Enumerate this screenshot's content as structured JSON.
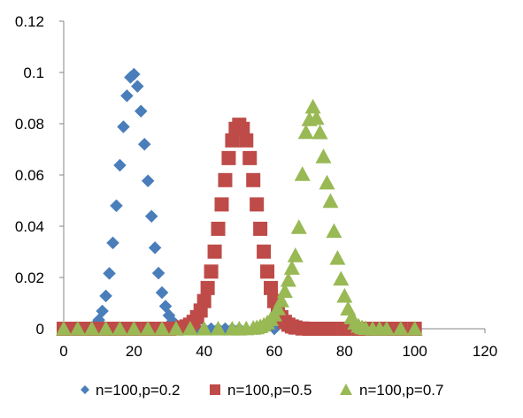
{
  "chart_data": {
    "type": "scatter",
    "title": "",
    "xlabel": "",
    "ylabel": "",
    "xlim": [
      0,
      120
    ],
    "ylim": [
      0,
      0.12
    ],
    "x_ticks": [
      0,
      20,
      40,
      60,
      80,
      100,
      120
    ],
    "y_ticks": [
      0,
      0.02,
      0.04,
      0.06,
      0.08,
      0.1,
      0.12
    ],
    "x_tick_labels": [
      "0",
      "20",
      "40",
      "60",
      "80",
      "100",
      "120"
    ],
    "y_tick_labels": [
      "0",
      "0.02",
      "0.04",
      "0.06",
      "0.08",
      "0.1",
      "0.12"
    ],
    "grid": false,
    "legend_position": "bottom",
    "series": [
      {
        "name": "n=100,p=0.2",
        "marker": "diamond",
        "color": "#4a7ebb",
        "x": [
          0,
          2,
          4,
          6,
          8,
          9,
          10,
          11,
          12,
          13,
          14,
          15,
          16,
          17,
          18,
          19,
          20,
          21,
          22,
          23,
          24,
          25,
          26,
          27,
          28,
          29,
          30,
          31,
          32,
          33,
          34,
          35,
          36,
          38,
          40,
          42,
          44,
          46,
          48,
          50,
          55,
          60,
          65,
          70,
          75,
          80,
          85,
          90,
          95,
          100
        ],
        "y": [
          0,
          0,
          0,
          0.0001,
          0.0006,
          0.0015,
          0.0034,
          0.0069,
          0.0128,
          0.0216,
          0.0335,
          0.048,
          0.0638,
          0.0788,
          0.0909,
          0.0981,
          0.0993,
          0.0946,
          0.0849,
          0.072,
          0.0577,
          0.0439,
          0.0316,
          0.0217,
          0.0141,
          0.0088,
          0.0052,
          0.0029,
          0.0016,
          0.0008,
          0.0004,
          0.0002,
          0.0001,
          0,
          0,
          0,
          0,
          0,
          0,
          0,
          0,
          0,
          0,
          0,
          0,
          0,
          0,
          0,
          0,
          0
        ]
      },
      {
        "name": "n=100,p=0.5",
        "marker": "square",
        "color": "#be4b48",
        "x": [
          0,
          4,
          8,
          12,
          16,
          20,
          24,
          28,
          30,
          32,
          34,
          35,
          36,
          37,
          38,
          39,
          40,
          41,
          42,
          43,
          44,
          45,
          46,
          47,
          48,
          49,
          50,
          51,
          52,
          53,
          54,
          55,
          56,
          57,
          58,
          59,
          60,
          61,
          62,
          63,
          64,
          65,
          66,
          68,
          70,
          72,
          76,
          80,
          84,
          88,
          92,
          96,
          100
        ],
        "y": [
          0,
          0,
          0,
          0,
          0,
          0,
          0,
          0,
          0,
          0.0001,
          0.0005,
          0.0009,
          0.0016,
          0.0027,
          0.0045,
          0.0071,
          0.0108,
          0.0159,
          0.0223,
          0.0301,
          0.039,
          0.0485,
          0.058,
          0.0666,
          0.0735,
          0.078,
          0.0796,
          0.078,
          0.0735,
          0.0666,
          0.058,
          0.0485,
          0.039,
          0.0301,
          0.0223,
          0.0159,
          0.0108,
          0.0071,
          0.0045,
          0.0027,
          0.0016,
          0.0009,
          0.0005,
          0.0001,
          0,
          0,
          0,
          0,
          0,
          0,
          0,
          0,
          0
        ]
      },
      {
        "name": "n=100,p=0.7",
        "marker": "triangle",
        "color": "#98b954",
        "x": [
          0,
          4,
          8,
          12,
          16,
          20,
          24,
          28,
          32,
          36,
          40,
          44,
          48,
          50,
          52,
          54,
          55,
          56,
          57,
          58,
          59,
          60,
          61,
          62,
          63,
          64,
          65,
          66,
          67,
          68,
          69,
          70,
          71,
          72,
          73,
          74,
          75,
          76,
          77,
          78,
          79,
          80,
          81,
          82,
          83,
          84,
          85,
          86,
          88,
          90,
          92,
          96,
          100
        ],
        "y": [
          0,
          0,
          0,
          0,
          0,
          0,
          0,
          0,
          0,
          0,
          0,
          0,
          0,
          0,
          0.0001,
          0.0003,
          0.0005,
          0.0009,
          0.0015,
          0.0024,
          0.0037,
          0.0055,
          0.0079,
          0.011,
          0.0147,
          0.019,
          0.0237,
          0.0286,
          0.0396,
          0.0603,
          0.0767,
          0.0817,
          0.0866,
          0.0822,
          0.0766,
          0.0672,
          0.057,
          0.0498,
          0.0381,
          0.0276,
          0.0195,
          0.0128,
          0.0078,
          0.0044,
          0.0023,
          0.0011,
          0.0005,
          0.0002,
          0,
          0,
          0,
          0,
          0
        ]
      }
    ]
  }
}
